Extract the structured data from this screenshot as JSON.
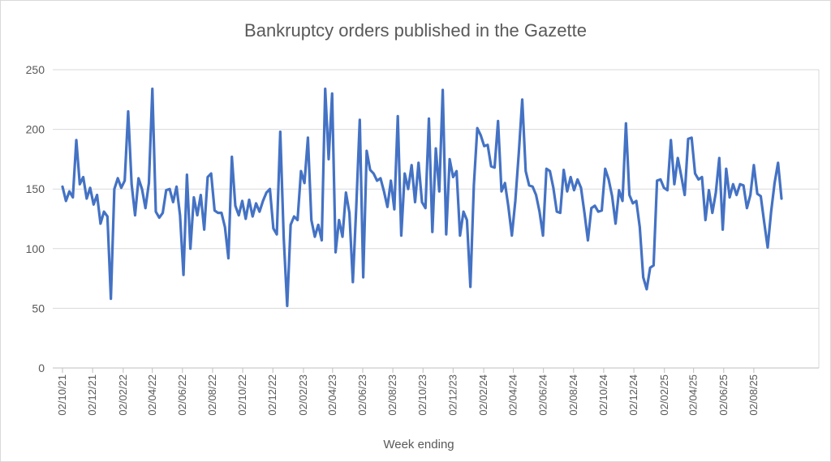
{
  "chart": {
    "title": "Bankruptcy orders published in the Gazette",
    "x_axis_title": "Week ending"
  },
  "colors": {
    "line": "#4472C4",
    "text": "#595959",
    "gridline": "#d9d9d9",
    "axisline": "#bfbfbf",
    "background": "#ffffff"
  },
  "chart_data": {
    "type": "line",
    "title": "Bankruptcy orders published in the Gazette",
    "xlabel": "Week ending",
    "ylabel": "",
    "ylim": [
      0,
      250
    ],
    "y_ticks": [
      0,
      50,
      100,
      150,
      200,
      250
    ],
    "grid": "horizontal",
    "legend": "none",
    "series_name": "Bankruptcy orders",
    "x_unit": "week-index (weekly data, week 0 = 02/10/21, week 208 = late Sep 2025)",
    "x_ticks": [
      {
        "label": "02/10/21",
        "week": 0
      },
      {
        "label": "02/12/21",
        "week": 8.71
      },
      {
        "label": "02/02/22",
        "week": 17.57
      },
      {
        "label": "02/04/22",
        "week": 26
      },
      {
        "label": "02/06/22",
        "week": 34.71
      },
      {
        "label": "02/08/22",
        "week": 43.43
      },
      {
        "label": "02/10/22",
        "week": 52.14
      },
      {
        "label": "02/12/22",
        "week": 60.86
      },
      {
        "label": "02/02/23",
        "week": 69.71
      },
      {
        "label": "02/04/23",
        "week": 78.14
      },
      {
        "label": "02/06/23",
        "week": 86.86
      },
      {
        "label": "02/08/23",
        "week": 95.57
      },
      {
        "label": "02/10/23",
        "week": 104.29
      },
      {
        "label": "02/12/23",
        "week": 113
      },
      {
        "label": "02/02/24",
        "week": 121.86
      },
      {
        "label": "02/04/24",
        "week": 130.43
      },
      {
        "label": "02/06/24",
        "week": 139.14
      },
      {
        "label": "02/08/24",
        "week": 147.86
      },
      {
        "label": "02/10/24",
        "week": 156.57
      },
      {
        "label": "02/12/24",
        "week": 165.29
      },
      {
        "label": "02/02/25",
        "week": 174.14
      },
      {
        "label": "02/04/25",
        "week": 182.57
      },
      {
        "label": "02/06/25",
        "week": 191.29
      },
      {
        "label": "02/08/25",
        "week": 200
      }
    ],
    "values": [
      152,
      140,
      148,
      143,
      191,
      154,
      160,
      142,
      151,
      137,
      145,
      121,
      131,
      127,
      58,
      150,
      159,
      151,
      157,
      215,
      154,
      128,
      159,
      150,
      134,
      155,
      234,
      131,
      126,
      130,
      149,
      150,
      139,
      152,
      128,
      78,
      162,
      100,
      143,
      128,
      145,
      116,
      160,
      163,
      132,
      130,
      130,
      118,
      92,
      177,
      136,
      128,
      140,
      125,
      141,
      127,
      138,
      131,
      140,
      147,
      150,
      117,
      112,
      198,
      109,
      52,
      120,
      127,
      124,
      165,
      155,
      193,
      124,
      110,
      120,
      107,
      234,
      175,
      230,
      97,
      124,
      110,
      147,
      130,
      72,
      136,
      208,
      76,
      182,
      166,
      163,
      157,
      159,
      148,
      135,
      157,
      133,
      211,
      111,
      163,
      150,
      170,
      139,
      172,
      139,
      134,
      209,
      114,
      184,
      148,
      233,
      112,
      175,
      160,
      165,
      111,
      131,
      124,
      68,
      153,
      201,
      195,
      186,
      187,
      169,
      168,
      207,
      148,
      155,
      135,
      111,
      140,
      180,
      225,
      165,
      153,
      152,
      145,
      131,
      111,
      167,
      165,
      151,
      131,
      130,
      166,
      148,
      160,
      149,
      158,
      151,
      130,
      107,
      134,
      136,
      131,
      132,
      167,
      158,
      144,
      121,
      149,
      140,
      205,
      145,
      138,
      140,
      118,
      76,
      66,
      84,
      86,
      157,
      158,
      151,
      149,
      191,
      154,
      176,
      161,
      145,
      192,
      193,
      163,
      158,
      160,
      124,
      149,
      130,
      147,
      176,
      116,
      167,
      143,
      154,
      145,
      154,
      153,
      134,
      145,
      170,
      146,
      144,
      122,
      101,
      131,
      155,
      172,
      142
    ]
  }
}
